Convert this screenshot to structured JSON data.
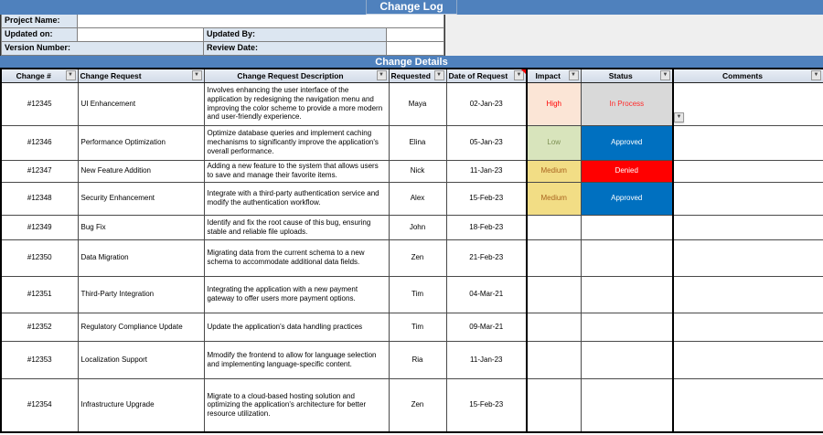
{
  "title": "Change Log",
  "details_title": "Change Details",
  "form": {
    "project_name_label": "Project Name:",
    "project_name_value": "",
    "updated_on_label": "Updated on:",
    "updated_on_value": "",
    "updated_by_label": "Updated By:",
    "updated_by_value": "",
    "version_number_label": "Version Number:",
    "review_date_label": "Review Date:",
    "review_date_value": ""
  },
  "icons": {
    "filter_dropdown": "▼",
    "cell_dropdown": "▼"
  },
  "table": {
    "headers": [
      {
        "key": "change",
        "label": "Change #"
      },
      {
        "key": "request",
        "label": "Change Request"
      },
      {
        "key": "desc",
        "label": "Change Request Description"
      },
      {
        "key": "requested",
        "label": "Requested"
      },
      {
        "key": "date",
        "label": "Date of Request",
        "comment_marker": true
      },
      {
        "key": "impact",
        "label": "Impact"
      },
      {
        "key": "status",
        "label": "Status"
      },
      {
        "key": "comments",
        "label": "Comments"
      }
    ],
    "rows": [
      {
        "change": "#12345",
        "request": "UI Enhancement",
        "desc": "Involves enhancing the user interface of the application by redesigning the navigation menu and improving the color scheme to provide a more modern and user-friendly experience.",
        "requested": "Maya",
        "date": "02-Jan-23",
        "impact": "High",
        "status": "In Process",
        "comments": ""
      },
      {
        "change": "#12346",
        "request": "Performance Optimization",
        "desc": "Optimize database queries and implement caching mechanisms to significantly improve the application's overall performance.",
        "requested": "Elina",
        "date": "05-Jan-23",
        "impact": "Low",
        "status": "Approved",
        "comments": ""
      },
      {
        "change": "#12347",
        "request": "New Feature Addition",
        "desc": "Adding a new feature to the system that allows users to save and manage their favorite items.",
        "requested": "Nick",
        "date": "11-Jan-23",
        "impact": "Medium",
        "status": "Denied",
        "comments": ""
      },
      {
        "change": "#12348",
        "request": "Security Enhancement",
        "desc": "Integrate with a third-party authentication service and modify the authentication workflow.",
        "requested": "Alex",
        "date": "15-Feb-23",
        "impact": "Medium",
        "status": "Approved",
        "comments": ""
      },
      {
        "change": "#12349",
        "request": "Bug Fix",
        "desc": "Identify and fix the root cause of this bug, ensuring stable and reliable file uploads.",
        "requested": "John",
        "date": "18-Feb-23",
        "impact": "",
        "status": "",
        "comments": ""
      },
      {
        "change": "#12350",
        "request": "Data Migration",
        "desc": "Migrating data from the current schema to a new schema to accommodate additional data fields.",
        "requested": "Zen",
        "date": "21-Feb-23",
        "impact": "",
        "status": "",
        "comments": ""
      },
      {
        "change": "#12351",
        "request": "Third-Party Integration",
        "desc": "Integrating the application with a new payment gateway to offer users more payment options.",
        "requested": "Tim",
        "date": "04-Mar-21",
        "impact": "",
        "status": "",
        "comments": ""
      },
      {
        "change": "#12352",
        "request": "Regulatory Compliance Update",
        "desc": "Update the application's data handling practices",
        "requested": "Tim",
        "date": "09-Mar-21",
        "impact": "",
        "status": "",
        "comments": ""
      },
      {
        "change": "#12353",
        "request": "Localization Support",
        "desc": "Mmodify the frontend to allow for language selection and implementing language-specific content.",
        "requested": "Ria",
        "date": "11-Jan-23",
        "impact": "",
        "status": "",
        "comments": ""
      },
      {
        "change": "#12354",
        "request": "Infrastructure Upgrade",
        "desc": "Migrate to a cloud-based hosting solution and optimizing the application's architecture for better resource utilization.",
        "requested": "Zen",
        "date": "15-Feb-23",
        "impact": "",
        "status": "",
        "comments": ""
      }
    ]
  },
  "colors": {
    "band_blue": "#4F81BD",
    "form_label_bg": "#DCE6F1",
    "header_bg": "#DCE4F0",
    "impact": {
      "High": {
        "bg": "#FBE5D6",
        "fg": "#FF0000"
      },
      "Low": {
        "bg": "#D8E4BC",
        "fg": "#7E9154"
      },
      "Medium": {
        "bg": "#F2DD85",
        "fg": "#A9641F"
      }
    },
    "status": {
      "In Process": {
        "bg": "#D9D9D9",
        "fg": "#FF2A2A"
      },
      "Approved": {
        "bg": "#0070C0",
        "fg": "#FFFFFF"
      },
      "Denied": {
        "bg": "#FF0000",
        "fg": "#FFFFFF"
      }
    }
  }
}
